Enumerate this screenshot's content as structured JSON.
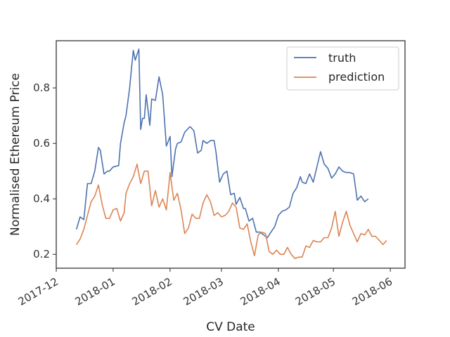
{
  "chart_data": {
    "type": "line",
    "xlabel": "CV Date",
    "ylabel": "Normalised Ethereum Price",
    "xlim": [
      "2017-12-01",
      "2018-06-09"
    ],
    "ylim": [
      0.15,
      0.97
    ],
    "x_ticks": [
      "2017-12",
      "2018-01",
      "2018-02",
      "2018-03",
      "2018-04",
      "2018-05",
      "2018-06"
    ],
    "y_ticks": [
      0.2,
      0.4,
      0.6,
      0.8
    ],
    "grid": false,
    "legend_position": "top-right",
    "series": [
      {
        "name": "truth",
        "color": "#4c72b0",
        "points": [
          [
            "2017-12-12",
            0.29
          ],
          [
            "2017-12-14",
            0.335
          ],
          [
            "2017-12-16",
            0.325
          ],
          [
            "2017-12-18",
            0.455
          ],
          [
            "2017-12-20",
            0.455
          ],
          [
            "2017-12-22",
            0.5
          ],
          [
            "2017-12-24",
            0.585
          ],
          [
            "2017-12-25",
            0.575
          ],
          [
            "2017-12-27",
            0.49
          ],
          [
            "2017-12-29",
            0.5
          ],
          [
            "2017-12-30",
            0.5
          ],
          [
            "2018-01-01",
            0.515
          ],
          [
            "2018-01-04",
            0.52
          ],
          [
            "2018-01-05",
            0.6
          ],
          [
            "2018-01-07",
            0.675
          ],
          [
            "2018-01-08",
            0.7
          ],
          [
            "2018-01-10",
            0.8
          ],
          [
            "2018-01-11",
            0.87
          ],
          [
            "2018-01-12",
            0.935
          ],
          [
            "2018-01-13",
            0.9
          ],
          [
            "2018-01-15",
            0.94
          ],
          [
            "2018-01-16",
            0.65
          ],
          [
            "2018-01-17",
            0.69
          ],
          [
            "2018-01-18",
            0.69
          ],
          [
            "2018-01-19",
            0.775
          ],
          [
            "2018-01-21",
            0.665
          ],
          [
            "2018-01-22",
            0.76
          ],
          [
            "2018-01-24",
            0.755
          ],
          [
            "2018-01-26",
            0.84
          ],
          [
            "2018-01-28",
            0.775
          ],
          [
            "2018-01-30",
            0.59
          ],
          [
            "2018-02-01",
            0.625
          ],
          [
            "2018-02-02",
            0.48
          ],
          [
            "2018-02-04",
            0.58
          ],
          [
            "2018-02-05",
            0.6
          ],
          [
            "2018-02-07",
            0.605
          ],
          [
            "2018-02-09",
            0.64
          ],
          [
            "2018-02-11",
            0.655
          ],
          [
            "2018-02-12",
            0.66
          ],
          [
            "2018-02-14",
            0.645
          ],
          [
            "2018-02-16",
            0.565
          ],
          [
            "2018-02-18",
            0.575
          ],
          [
            "2018-02-19",
            0.61
          ],
          [
            "2018-02-21",
            0.6
          ],
          [
            "2018-02-23",
            0.61
          ],
          [
            "2018-02-25",
            0.61
          ],
          [
            "2018-02-26",
            0.57
          ],
          [
            "2018-02-28",
            0.46
          ],
          [
            "2018-03-02",
            0.49
          ],
          [
            "2018-03-04",
            0.5
          ],
          [
            "2018-03-06",
            0.415
          ],
          [
            "2018-03-08",
            0.42
          ],
          [
            "2018-03-09",
            0.38
          ],
          [
            "2018-03-11",
            0.405
          ],
          [
            "2018-03-13",
            0.365
          ],
          [
            "2018-03-14",
            0.365
          ],
          [
            "2018-03-16",
            0.32
          ],
          [
            "2018-03-18",
            0.33
          ],
          [
            "2018-03-20",
            0.28
          ],
          [
            "2018-03-22",
            0.28
          ],
          [
            "2018-03-24",
            0.27
          ],
          [
            "2018-03-26",
            0.26
          ],
          [
            "2018-03-28",
            0.28
          ],
          [
            "2018-03-30",
            0.3
          ],
          [
            "2018-04-01",
            0.34
          ],
          [
            "2018-04-03",
            0.355
          ],
          [
            "2018-04-05",
            0.36
          ],
          [
            "2018-04-07",
            0.37
          ],
          [
            "2018-04-09",
            0.42
          ],
          [
            "2018-04-11",
            0.44
          ],
          [
            "2018-04-13",
            0.48
          ],
          [
            "2018-04-14",
            0.46
          ],
          [
            "2018-04-16",
            0.455
          ],
          [
            "2018-04-18",
            0.49
          ],
          [
            "2018-04-20",
            0.46
          ],
          [
            "2018-04-22",
            0.515
          ],
          [
            "2018-04-24",
            0.57
          ],
          [
            "2018-04-26",
            0.525
          ],
          [
            "2018-04-28",
            0.51
          ],
          [
            "2018-04-30",
            0.475
          ],
          [
            "2018-05-02",
            0.49
          ],
          [
            "2018-05-04",
            0.515
          ],
          [
            "2018-05-06",
            0.5
          ],
          [
            "2018-05-08",
            0.495
          ],
          [
            "2018-05-10",
            0.495
          ],
          [
            "2018-05-12",
            0.49
          ],
          [
            "2018-05-14",
            0.395
          ],
          [
            "2018-05-16",
            0.41
          ],
          [
            "2018-05-18",
            0.39
          ],
          [
            "2018-05-20",
            0.4
          ]
        ]
      },
      {
        "name": "prediction",
        "color": "#dd8452",
        "points": [
          [
            "2017-12-12",
            0.235
          ],
          [
            "2017-12-14",
            0.255
          ],
          [
            "2017-12-16",
            0.29
          ],
          [
            "2017-12-18",
            0.34
          ],
          [
            "2017-12-20",
            0.39
          ],
          [
            "2017-12-22",
            0.41
          ],
          [
            "2017-12-24",
            0.45
          ],
          [
            "2017-12-26",
            0.38
          ],
          [
            "2017-12-28",
            0.33
          ],
          [
            "2017-12-30",
            0.33
          ],
          [
            "2018-01-01",
            0.36
          ],
          [
            "2018-01-03",
            0.365
          ],
          [
            "2018-01-05",
            0.32
          ],
          [
            "2018-01-07",
            0.35
          ],
          [
            "2018-01-08",
            0.42
          ],
          [
            "2018-01-10",
            0.455
          ],
          [
            "2018-01-12",
            0.48
          ],
          [
            "2018-01-14",
            0.525
          ],
          [
            "2018-01-16",
            0.455
          ],
          [
            "2018-01-18",
            0.5
          ],
          [
            "2018-01-20",
            0.5
          ],
          [
            "2018-01-22",
            0.375
          ],
          [
            "2018-01-24",
            0.43
          ],
          [
            "2018-01-26",
            0.37
          ],
          [
            "2018-01-28",
            0.4
          ],
          [
            "2018-01-30",
            0.36
          ],
          [
            "2018-02-01",
            0.495
          ],
          [
            "2018-02-03",
            0.395
          ],
          [
            "2018-02-05",
            0.42
          ],
          [
            "2018-02-07",
            0.36
          ],
          [
            "2018-02-09",
            0.275
          ],
          [
            "2018-02-11",
            0.295
          ],
          [
            "2018-02-13",
            0.345
          ],
          [
            "2018-02-15",
            0.33
          ],
          [
            "2018-02-17",
            0.33
          ],
          [
            "2018-02-19",
            0.385
          ],
          [
            "2018-02-21",
            0.415
          ],
          [
            "2018-02-23",
            0.39
          ],
          [
            "2018-02-25",
            0.34
          ],
          [
            "2018-02-27",
            0.35
          ],
          [
            "2018-03-01",
            0.335
          ],
          [
            "2018-03-03",
            0.34
          ],
          [
            "2018-03-05",
            0.355
          ],
          [
            "2018-03-07",
            0.385
          ],
          [
            "2018-03-09",
            0.37
          ],
          [
            "2018-03-11",
            0.295
          ],
          [
            "2018-03-13",
            0.29
          ],
          [
            "2018-03-15",
            0.31
          ],
          [
            "2018-03-17",
            0.245
          ],
          [
            "2018-03-19",
            0.195
          ],
          [
            "2018-03-21",
            0.27
          ],
          [
            "2018-03-23",
            0.28
          ],
          [
            "2018-03-25",
            0.275
          ],
          [
            "2018-03-27",
            0.21
          ],
          [
            "2018-03-29",
            0.2
          ],
          [
            "2018-03-31",
            0.215
          ],
          [
            "2018-04-02",
            0.2
          ],
          [
            "2018-04-04",
            0.2
          ],
          [
            "2018-04-06",
            0.225
          ],
          [
            "2018-04-08",
            0.2
          ],
          [
            "2018-04-10",
            0.185
          ],
          [
            "2018-04-12",
            0.19
          ],
          [
            "2018-04-14",
            0.19
          ],
          [
            "2018-04-16",
            0.23
          ],
          [
            "2018-04-18",
            0.225
          ],
          [
            "2018-04-20",
            0.25
          ],
          [
            "2018-04-22",
            0.245
          ],
          [
            "2018-04-24",
            0.245
          ],
          [
            "2018-04-26",
            0.26
          ],
          [
            "2018-04-28",
            0.26
          ],
          [
            "2018-04-30",
            0.295
          ],
          [
            "2018-05-02",
            0.355
          ],
          [
            "2018-05-04",
            0.265
          ],
          [
            "2018-05-06",
            0.315
          ],
          [
            "2018-05-08",
            0.355
          ],
          [
            "2018-05-10",
            0.305
          ],
          [
            "2018-05-12",
            0.275
          ],
          [
            "2018-05-14",
            0.245
          ],
          [
            "2018-05-16",
            0.275
          ],
          [
            "2018-05-18",
            0.27
          ],
          [
            "2018-05-20",
            0.29
          ],
          [
            "2018-05-22",
            0.265
          ],
          [
            "2018-05-24",
            0.265
          ],
          [
            "2018-05-26",
            0.25
          ],
          [
            "2018-05-28",
            0.235
          ],
          [
            "2018-05-30",
            0.25
          ]
        ]
      }
    ]
  }
}
